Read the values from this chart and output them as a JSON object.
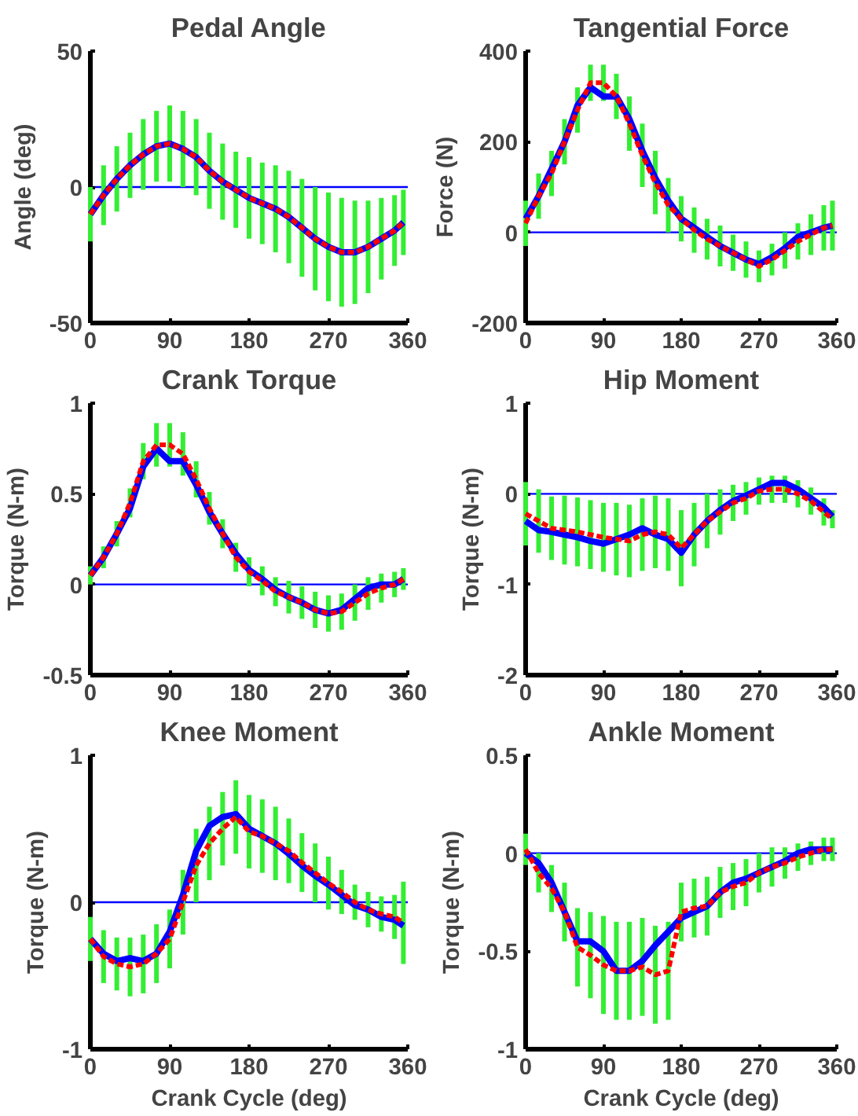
{
  "chart_data": [
    {
      "type": "line",
      "title": "Pedal Angle",
      "ylabel": "Angle (deg)",
      "x": [
        0,
        15,
        30,
        45,
        60,
        75,
        90,
        105,
        120,
        135,
        150,
        165,
        180,
        195,
        210,
        225,
        240,
        255,
        270,
        285,
        300,
        315,
        330,
        345,
        355
      ],
      "xlim": [
        0,
        360
      ],
      "xticks": [
        0,
        90,
        180,
        270,
        360
      ],
      "ylim": [
        -50,
        50
      ],
      "yticks": [
        -50,
        0,
        50
      ],
      "grid": false,
      "series": [
        {
          "color": "#0000ff",
          "line_style": "solid",
          "values": [
            -10,
            -3,
            3,
            8,
            12,
            15,
            16,
            14,
            11,
            6,
            2,
            -1,
            -4,
            -6,
            -8,
            -11,
            -15,
            -19,
            -22,
            -24,
            -24,
            -22,
            -19,
            -16,
            -13
          ]
        },
        {
          "color": "#ff0000",
          "line_style": "dashed",
          "values": [
            -10,
            -3,
            3,
            8,
            12,
            15,
            16,
            14,
            11,
            6,
            2,
            -1,
            -4,
            -6,
            -8,
            -11,
            -15,
            -19,
            -22,
            -24,
            -24,
            -22,
            -19,
            -16,
            -13
          ],
          "errors": [
            10,
            11,
            12,
            12,
            13,
            13,
            14,
            14,
            14,
            14,
            14,
            14,
            15,
            15,
            16,
            17,
            18,
            19,
            20,
            20,
            19,
            17,
            15,
            13,
            12
          ]
        }
      ],
      "ref_lines": [
        {
          "axis": "y",
          "value": 0,
          "color": "#0000ff"
        }
      ]
    },
    {
      "type": "line",
      "title": "Tangential Force",
      "ylabel": "Force (N)",
      "x": [
        0,
        15,
        30,
        45,
        60,
        75,
        90,
        105,
        120,
        135,
        150,
        165,
        180,
        195,
        210,
        225,
        240,
        255,
        270,
        285,
        300,
        315,
        330,
        345,
        355
      ],
      "xlim": [
        0,
        360
      ],
      "xticks": [
        0,
        90,
        180,
        270,
        360
      ],
      "ylim": [
        -200,
        400
      ],
      "yticks": [
        -200,
        0,
        200,
        400
      ],
      "grid": false,
      "series": [
        {
          "color": "#0000ff",
          "line_style": "solid",
          "values": [
            30,
            80,
            140,
            200,
            280,
            320,
            300,
            300,
            250,
            180,
            120,
            70,
            30,
            10,
            -10,
            -30,
            -45,
            -60,
            -70,
            -55,
            -35,
            -10,
            0,
            10,
            15
          ]
        },
        {
          "color": "#ff0000",
          "line_style": "dashed",
          "values": [
            20,
            80,
            130,
            200,
            270,
            330,
            330,
            300,
            240,
            170,
            110,
            60,
            30,
            5,
            -15,
            -30,
            -45,
            -60,
            -75,
            -60,
            -40,
            -20,
            -5,
            10,
            15
          ],
          "errors": [
            50,
            50,
            50,
            50,
            50,
            40,
            40,
            50,
            60,
            70,
            70,
            60,
            50,
            50,
            45,
            45,
            40,
            40,
            35,
            35,
            40,
            40,
            45,
            50,
            55
          ]
        }
      ],
      "ref_lines": [
        {
          "axis": "y",
          "value": 0,
          "color": "#0000ff"
        }
      ]
    },
    {
      "type": "line",
      "title": "Crank Torque",
      "ylabel": "Torque (N-m)",
      "x": [
        0,
        15,
        30,
        45,
        60,
        75,
        90,
        105,
        120,
        135,
        150,
        165,
        180,
        195,
        210,
        225,
        240,
        255,
        270,
        285,
        300,
        315,
        330,
        345,
        355
      ],
      "xlim": [
        0,
        360
      ],
      "xticks": [
        0,
        90,
        180,
        270,
        360
      ],
      "ylim": [
        -0.5,
        1
      ],
      "yticks": [
        -0.5,
        0,
        0.5,
        1
      ],
      "grid": false,
      "series": [
        {
          "color": "#0000ff",
          "line_style": "solid",
          "values": [
            0.05,
            0.15,
            0.28,
            0.42,
            0.65,
            0.75,
            0.68,
            0.68,
            0.55,
            0.4,
            0.28,
            0.17,
            0.08,
            0.03,
            -0.03,
            -0.07,
            -0.1,
            -0.14,
            -0.16,
            -0.14,
            -0.08,
            -0.02,
            0,
            0,
            0.03
          ]
        },
        {
          "color": "#ff0000",
          "line_style": "dashed",
          "values": [
            0.05,
            0.15,
            0.28,
            0.45,
            0.68,
            0.77,
            0.77,
            0.72,
            0.58,
            0.42,
            0.28,
            0.15,
            0.07,
            0.02,
            -0.04,
            -0.07,
            -0.1,
            -0.14,
            -0.16,
            -0.15,
            -0.1,
            -0.05,
            -0.02,
            0,
            0.03
          ],
          "errors": [
            0.05,
            0.06,
            0.07,
            0.08,
            0.1,
            0.12,
            0.12,
            0.12,
            0.1,
            0.09,
            0.08,
            0.08,
            0.08,
            0.08,
            0.08,
            0.09,
            0.09,
            0.1,
            0.1,
            0.1,
            0.1,
            0.09,
            0.08,
            0.07,
            0.06
          ]
        }
      ],
      "ref_lines": [
        {
          "axis": "y",
          "value": 0,
          "color": "#0000ff"
        }
      ]
    },
    {
      "type": "line",
      "title": "Hip Moment",
      "ylabel": "Torque (N-m)",
      "x": [
        0,
        15,
        30,
        45,
        60,
        75,
        90,
        105,
        120,
        135,
        150,
        165,
        180,
        195,
        210,
        225,
        240,
        255,
        270,
        285,
        300,
        315,
        330,
        345,
        355
      ],
      "xlim": [
        0,
        360
      ],
      "xticks": [
        0,
        90,
        180,
        270,
        360
      ],
      "ylim": [
        -2,
        1
      ],
      "yticks": [
        -2,
        -1,
        0,
        1
      ],
      "grid": false,
      "series": [
        {
          "color": "#0000ff",
          "line_style": "solid",
          "values": [
            -0.3,
            -0.4,
            -0.42,
            -0.45,
            -0.48,
            -0.52,
            -0.55,
            -0.5,
            -0.45,
            -0.38,
            -0.45,
            -0.5,
            -0.65,
            -0.45,
            -0.3,
            -0.18,
            -0.08,
            -0.02,
            0.05,
            0.12,
            0.12,
            0.05,
            -0.05,
            -0.15,
            -0.25
          ]
        },
        {
          "color": "#ff0000",
          "line_style": "dashed",
          "values": [
            -0.22,
            -0.3,
            -0.38,
            -0.4,
            -0.42,
            -0.45,
            -0.48,
            -0.5,
            -0.52,
            -0.45,
            -0.42,
            -0.45,
            -0.6,
            -0.45,
            -0.3,
            -0.2,
            -0.1,
            -0.05,
            0.03,
            0.05,
            0.05,
            0,
            -0.08,
            -0.2,
            -0.28
          ],
          "errors": [
            0.35,
            0.35,
            0.35,
            0.38,
            0.38,
            0.38,
            0.38,
            0.4,
            0.4,
            0.4,
            0.4,
            0.4,
            0.42,
            0.35,
            0.3,
            0.25,
            0.2,
            0.18,
            0.15,
            0.15,
            0.15,
            0.15,
            0.15,
            0.15,
            0.1
          ]
        }
      ],
      "ref_lines": [
        {
          "axis": "y",
          "value": 0,
          "color": "#0000ff"
        }
      ]
    },
    {
      "type": "line",
      "title": "Knee Moment",
      "xlabel": "Crank Cycle (deg)",
      "ylabel": "Torque (N-m)",
      "x": [
        0,
        15,
        30,
        45,
        60,
        75,
        90,
        105,
        120,
        135,
        150,
        165,
        180,
        195,
        210,
        225,
        240,
        255,
        270,
        285,
        300,
        315,
        330,
        345,
        355
      ],
      "xlim": [
        0,
        360
      ],
      "xticks": [
        0,
        90,
        180,
        270,
        360
      ],
      "ylim": [
        -1,
        1
      ],
      "yticks": [
        -1,
        0,
        1
      ],
      "grid": false,
      "series": [
        {
          "color": "#0000ff",
          "line_style": "solid",
          "values": [
            -0.25,
            -0.35,
            -0.4,
            -0.38,
            -0.4,
            -0.35,
            -0.2,
            0.05,
            0.35,
            0.52,
            0.58,
            0.6,
            0.5,
            0.45,
            0.4,
            0.33,
            0.25,
            0.18,
            0.12,
            0.05,
            -0.02,
            -0.05,
            -0.1,
            -0.12,
            -0.16
          ]
        },
        {
          "color": "#ff0000",
          "line_style": "dashed",
          "values": [
            -0.25,
            -0.37,
            -0.42,
            -0.44,
            -0.42,
            -0.35,
            -0.25,
            0,
            0.25,
            0.4,
            0.5,
            0.58,
            0.48,
            0.45,
            0.4,
            0.35,
            0.27,
            0.2,
            0.13,
            0.07,
            0,
            -0.05,
            -0.08,
            -0.1,
            -0.14
          ],
          "errors": [
            0.15,
            0.18,
            0.18,
            0.2,
            0.2,
            0.2,
            0.2,
            0.22,
            0.25,
            0.25,
            0.25,
            0.25,
            0.25,
            0.25,
            0.25,
            0.22,
            0.2,
            0.2,
            0.18,
            0.15,
            0.12,
            0.12,
            0.12,
            0.15,
            0.28
          ]
        }
      ],
      "ref_lines": [
        {
          "axis": "y",
          "value": 0,
          "color": "#0000ff"
        }
      ]
    },
    {
      "type": "line",
      "title": "Ankle Moment",
      "xlabel": "Crank Cycle (deg)",
      "ylabel": "Torque (N-m)",
      "x": [
        0,
        15,
        30,
        45,
        60,
        75,
        90,
        105,
        120,
        135,
        150,
        165,
        180,
        195,
        210,
        225,
        240,
        255,
        270,
        285,
        300,
        315,
        330,
        345,
        355
      ],
      "xlim": [
        0,
        360
      ],
      "xticks": [
        0,
        90,
        180,
        270,
        360
      ],
      "ylim": [
        -1,
        0.5
      ],
      "yticks": [
        -1,
        -0.5,
        0,
        0.5
      ],
      "grid": false,
      "series": [
        {
          "color": "#0000ff",
          "line_style": "solid",
          "values": [
            0,
            -0.05,
            -0.15,
            -0.3,
            -0.45,
            -0.45,
            -0.5,
            -0.6,
            -0.6,
            -0.55,
            -0.47,
            -0.4,
            -0.33,
            -0.3,
            -0.27,
            -0.2,
            -0.15,
            -0.13,
            -0.1,
            -0.07,
            -0.04,
            0,
            0.02,
            0.02,
            0.02
          ]
        },
        {
          "color": "#ff0000",
          "line_style": "dashed",
          "values": [
            0.02,
            -0.1,
            -0.18,
            -0.3,
            -0.48,
            -0.52,
            -0.57,
            -0.6,
            -0.6,
            -0.58,
            -0.62,
            -0.6,
            -0.3,
            -0.28,
            -0.27,
            -0.2,
            -0.17,
            -0.15,
            -0.1,
            -0.07,
            -0.05,
            -0.02,
            0,
            0.02,
            0.02
          ],
          "errors": [
            0.08,
            0.1,
            0.12,
            0.15,
            0.2,
            0.22,
            0.25,
            0.25,
            0.25,
            0.25,
            0.25,
            0.25,
            0.15,
            0.15,
            0.15,
            0.13,
            0.12,
            0.12,
            0.1,
            0.1,
            0.08,
            0.07,
            0.06,
            0.06,
            0.06
          ]
        }
      ],
      "ref_lines": [
        {
          "axis": "y",
          "value": 0,
          "color": "#0000ff"
        }
      ]
    }
  ]
}
